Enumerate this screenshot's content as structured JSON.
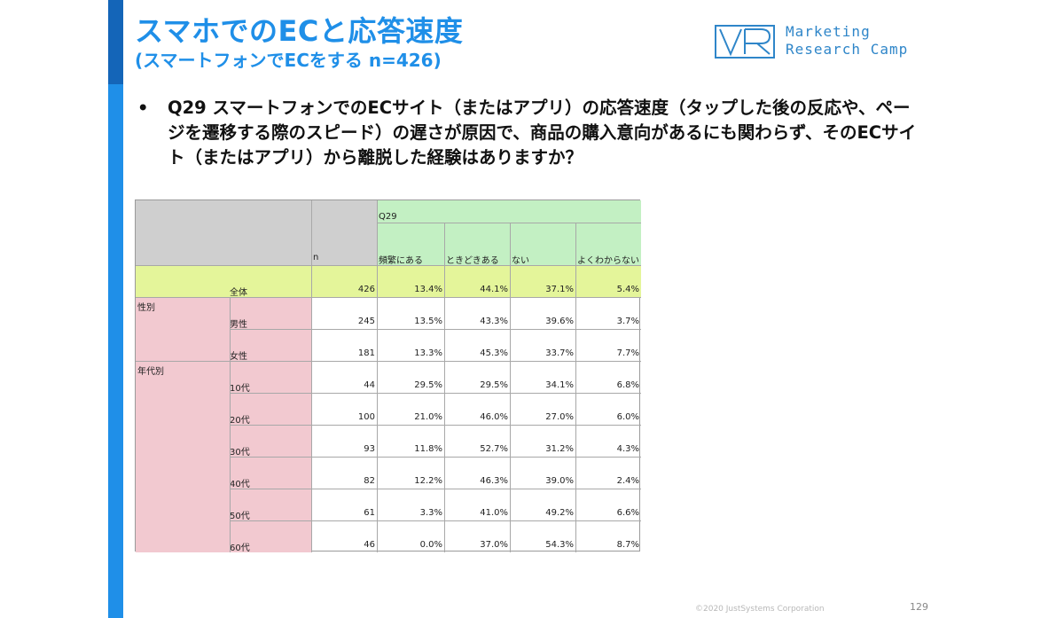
{
  "slide": {
    "title": "スマホでのECと応答速度",
    "subtitle": "(スマートフォンでECをする n=426)",
    "logo": {
      "line1": "Marketing",
      "line2": "Research Camp",
      "mark_icon": "mrc-logo-mark",
      "color": "#2f86c9"
    },
    "accent_color": "#1f8fe8",
    "bullet": "•",
    "question": "Q29 スマートフォンでのECサイト（またはアプリ）の応答速度（タップした後の反応や、ページを遷移する際のスピード）の遅さが原因で、商品の購入意向があるにも関わらず、そのECサイト（またはアプリ）から離脱した経験はありますか？",
    "footer": "©2020 JustSystems Corporation",
    "page_number": "129"
  },
  "table": {
    "colors": {
      "header_gray": "#cfcfcf",
      "header_green": "#c3f0c3",
      "total_row": "#e4f59a",
      "group_pink": "#f2c9d0"
    },
    "q_label": "Q29",
    "n_label": "n",
    "columns": [
      "頻繁にある",
      "ときどきある",
      "ない",
      "よくわからない"
    ],
    "groups": [
      {
        "label": "性別",
        "start_row": 1
      },
      {
        "label": "年代別",
        "start_row": 3
      }
    ],
    "rows": [
      {
        "label": "全体",
        "n": "426",
        "values": [
          "13.4%",
          "44.1%",
          "37.1%",
          "5.4%"
        ]
      },
      {
        "label": "男性",
        "n": "245",
        "values": [
          "13.5%",
          "43.3%",
          "39.6%",
          "3.7%"
        ]
      },
      {
        "label": "女性",
        "n": "181",
        "values": [
          "13.3%",
          "45.3%",
          "33.7%",
          "7.7%"
        ]
      },
      {
        "label": "10代",
        "n": "44",
        "values": [
          "29.5%",
          "29.5%",
          "34.1%",
          "6.8%"
        ]
      },
      {
        "label": "20代",
        "n": "100",
        "values": [
          "21.0%",
          "46.0%",
          "27.0%",
          "6.0%"
        ]
      },
      {
        "label": "30代",
        "n": "93",
        "values": [
          "11.8%",
          "52.7%",
          "31.2%",
          "4.3%"
        ]
      },
      {
        "label": "40代",
        "n": "82",
        "values": [
          "12.2%",
          "46.3%",
          "39.0%",
          "2.4%"
        ]
      },
      {
        "label": "50代",
        "n": "61",
        "values": [
          "3.3%",
          "41.0%",
          "49.2%",
          "6.6%"
        ]
      },
      {
        "label": "60代",
        "n": "46",
        "values": [
          "0.0%",
          "37.0%",
          "54.3%",
          "8.7%"
        ]
      }
    ]
  }
}
